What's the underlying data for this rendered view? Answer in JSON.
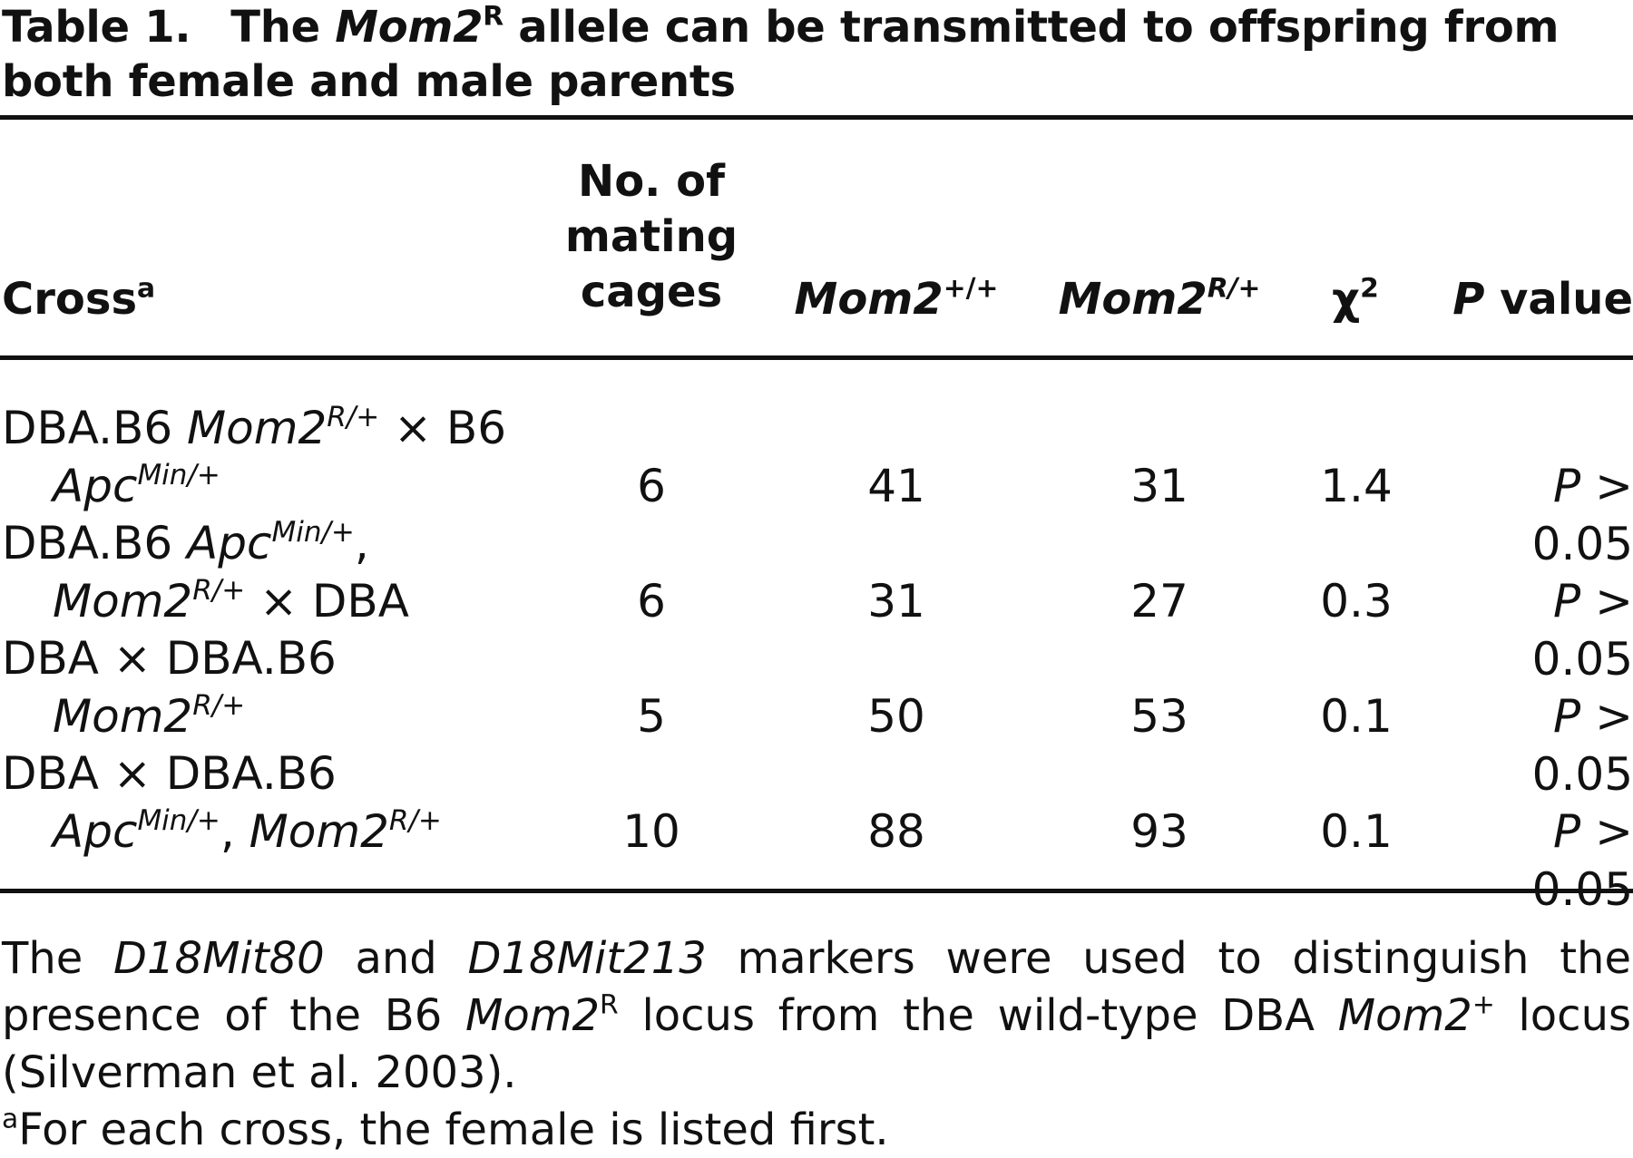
{
  "title": {
    "label": "Table 1.",
    "part1": "The ",
    "gene": "Mom2",
    "gene_sup": "R",
    "part2": " allele can be transmitted to offspring from both female and male parents"
  },
  "headers": {
    "cross": "Cross",
    "cross_sup": "a",
    "cages_line1": "No. of",
    "cages_line2": "mating",
    "cages_line3": "cages",
    "plus_gene": "Mom2",
    "plus_sup": "+/+",
    "r_gene": "Mom2",
    "r_sup": "R/+",
    "chi": "χ",
    "chi_sup": "2",
    "p_italic": "P",
    "p_rest": " value"
  },
  "rows": [
    {
      "line1": {
        "a": "DBA.B6 ",
        "b_it": "Mom2",
        "b_sup": "R/+",
        "c": " × B6"
      },
      "line2": {
        "a_it": "Apc",
        "a_sup": "Min/+",
        "b": "",
        "c_it": "",
        "c_sup": ""
      },
      "cages": "6",
      "plus": "41",
      "r": "31",
      "chi2": "1.4",
      "p_it": "P",
      "p_rest": " > 0.05"
    },
    {
      "line1": {
        "a": "DBA.B6 ",
        "b_it": "Apc",
        "b_sup": "Min/+",
        "c": ","
      },
      "line2": {
        "a_it": "Mom2",
        "a_sup": "R/+",
        "b": " × DBA",
        "c_it": "",
        "c_sup": ""
      },
      "cages": "6",
      "plus": "31",
      "r": "27",
      "chi2": "0.3",
      "p_it": "P",
      "p_rest": " > 0.05"
    },
    {
      "line1": {
        "a": "DBA × DBA.B6",
        "b_it": "",
        "b_sup": "",
        "c": ""
      },
      "line2": {
        "a_it": "Mom2",
        "a_sup": "R/+",
        "b": "",
        "c_it": "",
        "c_sup": ""
      },
      "cages": "5",
      "plus": "50",
      "r": "53",
      "chi2": "0.1",
      "p_it": "P",
      "p_rest": " > 0.05"
    },
    {
      "line1": {
        "a": "DBA × DBA.B6",
        "b_it": "",
        "b_sup": "",
        "c": ""
      },
      "line2": {
        "a_it": "Apc",
        "a_sup": "Min/+",
        "b": ", ",
        "c_it": "Mom2",
        "c_sup": "R/+"
      },
      "cages": "10",
      "plus": "88",
      "r": "93",
      "chi2": "0.1",
      "p_it": "P",
      "p_rest": " > 0.05"
    }
  ],
  "note": {
    "t1": "The ",
    "m1": "D18Mit80",
    "t2": " and ",
    "m2": "D18Mit213",
    "t3": " markers were used to distinguish the presence of the B6 ",
    "g1": "Mom2",
    "g1_sup": "R",
    "t4": " locus from the wild-type DBA ",
    "g2": "Mom2",
    "g2_sup": "+",
    "t5": " locus (Silverman et al. 2003)."
  },
  "footnote": {
    "sup": "a",
    "text": "For each cross, the female is listed first."
  }
}
